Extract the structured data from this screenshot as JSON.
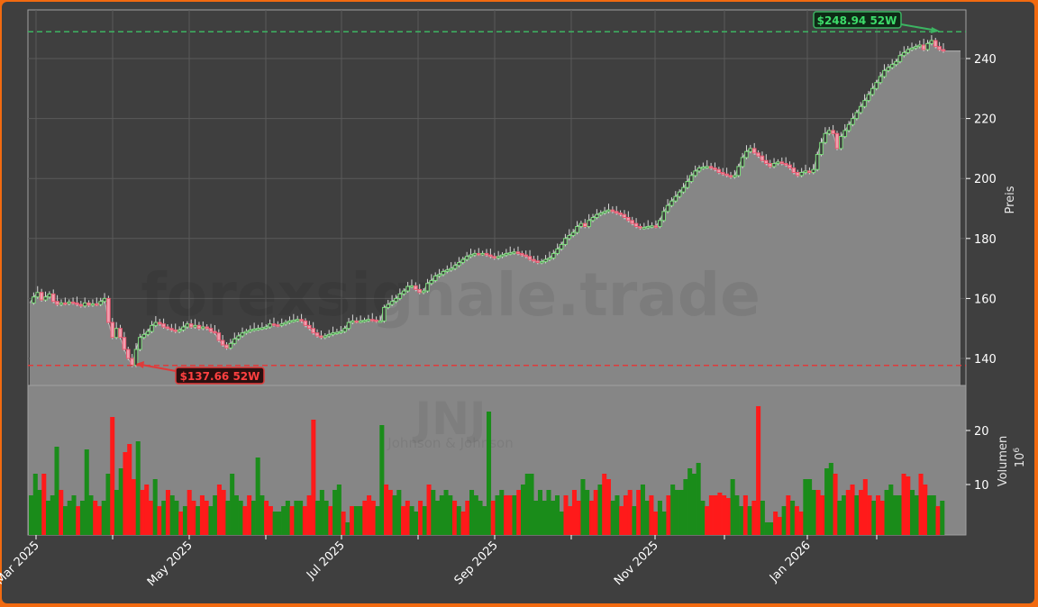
{
  "chart_data": {
    "type": "candlestick",
    "ticker": "JNJ",
    "company": "Johnson & Johnson",
    "watermark": "forexsignale.trade",
    "colors": {
      "background": "#3f3f3f",
      "frame": "#f26a10",
      "area_fill": "#868686",
      "area_line": "#b0b0b0",
      "candle_up": "#7ddc7d",
      "candle_down": "#e8576f",
      "volume_up": "#1a8c1a",
      "volume_down": "#ff1a1a",
      "high_line": "#3cb462",
      "low_line": "#e03a3a",
      "grid": "#5a5a5a"
    },
    "price_axis": {
      "label": "Preis",
      "ticks": [
        140,
        160,
        180,
        200,
        220,
        240
      ],
      "ylim": [
        132.5,
        251
      ]
    },
    "volume_axis": {
      "label": "Volumen",
      "unit": "10^6",
      "unit_base": "10",
      "unit_exp": "6",
      "ticks": [
        10,
        20
      ],
      "ylim": [
        0,
        26
      ]
    },
    "x_axis": {
      "tick_labels": [
        "Mar 2025",
        "May 2025",
        "Jul 2025",
        "Sep 2025",
        "Nov 2025",
        "Jan 2026"
      ]
    },
    "annotations": {
      "high": {
        "label": "$248.94 52W",
        "value": 248.94
      },
      "low": {
        "label": "$137.66 52W",
        "value": 137.66
      }
    },
    "close_series": [
      158.5,
      160.5,
      162,
      159.5,
      160.5,
      161.5,
      159,
      158,
      158.5,
      158.3,
      158.8,
      158.5,
      158,
      157.5,
      158.5,
      157.8,
      158.2,
      158,
      159,
      160,
      152,
      147,
      150,
      147,
      143,
      140,
      137.7,
      143,
      147,
      148,
      149,
      151,
      152,
      151.5,
      150.5,
      150,
      149.5,
      149,
      149.5,
      150.5,
      151.5,
      150.5,
      151,
      150,
      150.5,
      150,
      149,
      148.5,
      146,
      144.5,
      143.5,
      145,
      146.5,
      147.5,
      148.5,
      149,
      149.5,
      149.8,
      150,
      150.2,
      150.5,
      151.5,
      151.2,
      151,
      151.5,
      152,
      152.5,
      152.7,
      153,
      152.5,
      151,
      150,
      148.5,
      147.5,
      147,
      147.5,
      148,
      148.5,
      148.7,
      149,
      150,
      152,
      152.5,
      152.3,
      152.5,
      152.7,
      153,
      152.8,
      152.5,
      152.5,
      157,
      158,
      159,
      160,
      161.5,
      162.5,
      164,
      164.2,
      163,
      162,
      162.5,
      165,
      166,
      167.5,
      168,
      169,
      169.5,
      170,
      171,
      172,
      173,
      174,
      174.5,
      175,
      174.8,
      175,
      174.5,
      174,
      173.5,
      174,
      174.5,
      175,
      175.2,
      175.5,
      175,
      174.5,
      174,
      173,
      172.5,
      172,
      172.3,
      173,
      173.5,
      175,
      176.5,
      178,
      180,
      181,
      182,
      184,
      185,
      184,
      186,
      187,
      188,
      188.5,
      189,
      189.5,
      189,
      188.5,
      188,
      187,
      186,
      185,
      184,
      183.5,
      183.7,
      184,
      184.2,
      184,
      186,
      189,
      191,
      192.5,
      194,
      195.5,
      197,
      199,
      201,
      202.5,
      203.5,
      203.8,
      204,
      203.5,
      203,
      202,
      201.5,
      201,
      200.5,
      201,
      204,
      207,
      209,
      210,
      208.5,
      207.5,
      206,
      205,
      204,
      205,
      205.5,
      205,
      204.5,
      203.5,
      202,
      201,
      202,
      202.5,
      202,
      203,
      208,
      212,
      215,
      216,
      215,
      210,
      214,
      216,
      218,
      220,
      222,
      224,
      226,
      228,
      230,
      232,
      234,
      236,
      237,
      238,
      239,
      241,
      242,
      243,
      243.5,
      244,
      244.5,
      243,
      245,
      246,
      244,
      243,
      242.5
    ],
    "volume_series": [
      {
        "v": 8,
        "up": true
      },
      {
        "v": 12,
        "up": true
      },
      {
        "v": 9,
        "up": true
      },
      {
        "v": 12,
        "up": false
      },
      {
        "v": 7,
        "up": true
      },
      {
        "v": 8,
        "up": true
      },
      {
        "v": 17,
        "up": true
      },
      {
        "v": 9,
        "up": false
      },
      {
        "v": 6,
        "up": true
      },
      {
        "v": 7,
        "up": true
      },
      {
        "v": 8,
        "up": true
      },
      {
        "v": 6,
        "up": false
      },
      {
        "v": 7,
        "up": true
      },
      {
        "v": 16.5,
        "up": true
      },
      {
        "v": 8,
        "up": true
      },
      {
        "v": 7,
        "up": false
      },
      {
        "v": 6,
        "up": false
      },
      {
        "v": 7,
        "up": true
      },
      {
        "v": 12,
        "up": true
      },
      {
        "v": 22.5,
        "up": false
      },
      {
        "v": 9,
        "up": true
      },
      {
        "v": 13,
        "up": true
      },
      {
        "v": 16,
        "up": false
      },
      {
        "v": 17.5,
        "up": false
      },
      {
        "v": 11,
        "up": false
      },
      {
        "v": 18,
        "up": true
      },
      {
        "v": 9,
        "up": false
      },
      {
        "v": 10,
        "up": false
      },
      {
        "v": 7,
        "up": false
      },
      {
        "v": 11,
        "up": true
      },
      {
        "v": 6,
        "up": false
      },
      {
        "v": 7,
        "up": true
      },
      {
        "v": 9,
        "up": false
      },
      {
        "v": 8,
        "up": true
      },
      {
        "v": 7,
        "up": true
      },
      {
        "v": 5,
        "up": false
      },
      {
        "v": 6,
        "up": true
      },
      {
        "v": 9,
        "up": false
      },
      {
        "v": 7,
        "up": false
      },
      {
        "v": 6,
        "up": true
      },
      {
        "v": 8,
        "up": false
      },
      {
        "v": 7,
        "up": false
      },
      {
        "v": 6,
        "up": true
      },
      {
        "v": 8,
        "up": true
      },
      {
        "v": 10,
        "up": false
      },
      {
        "v": 9,
        "up": false
      },
      {
        "v": 7,
        "up": true
      },
      {
        "v": 12,
        "up": true
      },
      {
        "v": 8,
        "up": true
      },
      {
        "v": 7,
        "up": true
      },
      {
        "v": 6,
        "up": false
      },
      {
        "v": 8,
        "up": false
      },
      {
        "v": 7,
        "up": true
      },
      {
        "v": 15,
        "up": true
      },
      {
        "v": 8,
        "up": true
      },
      {
        "v": 7,
        "up": false
      },
      {
        "v": 6,
        "up": false
      },
      {
        "v": 5,
        "up": true
      },
      {
        "v": 5,
        "up": true
      },
      {
        "v": 6,
        "up": true
      },
      {
        "v": 7,
        "up": true
      },
      {
        "v": 6,
        "up": false
      },
      {
        "v": 7,
        "up": true
      },
      {
        "v": 7,
        "up": true
      },
      {
        "v": 6,
        "up": false
      },
      {
        "v": 8,
        "up": false
      },
      {
        "v": 22,
        "up": false
      },
      {
        "v": 7,
        "up": true
      },
      {
        "v": 9,
        "up": true
      },
      {
        "v": 7,
        "up": true
      },
      {
        "v": 6,
        "up": false
      },
      {
        "v": 9,
        "up": true
      },
      {
        "v": 10,
        "up": true
      },
      {
        "v": 5,
        "up": false
      },
      {
        "v": 3,
        "up": true
      },
      {
        "v": 6,
        "up": false
      },
      {
        "v": 6,
        "up": true
      },
      {
        "v": 6,
        "up": true
      },
      {
        "v": 7,
        "up": false
      },
      {
        "v": 8,
        "up": false
      },
      {
        "v": 7,
        "up": false
      },
      {
        "v": 6,
        "up": true
      },
      {
        "v": 21,
        "up": true
      },
      {
        "v": 10,
        "up": false
      },
      {
        "v": 9,
        "up": false
      },
      {
        "v": 8,
        "up": true
      },
      {
        "v": 9,
        "up": true
      },
      {
        "v": 6,
        "up": false
      },
      {
        "v": 7,
        "up": false
      },
      {
        "v": 6,
        "up": true
      },
      {
        "v": 5,
        "up": true
      },
      {
        "v": 7,
        "up": false
      },
      {
        "v": 6,
        "up": true
      },
      {
        "v": 10,
        "up": false
      },
      {
        "v": 9,
        "up": true
      },
      {
        "v": 7,
        "up": true
      },
      {
        "v": 8,
        "up": true
      },
      {
        "v": 9,
        "up": true
      },
      {
        "v": 8,
        "up": true
      },
      {
        "v": 7,
        "up": false
      },
      {
        "v": 6,
        "up": true
      },
      {
        "v": 5,
        "up": false
      },
      {
        "v": 7,
        "up": false
      },
      {
        "v": 9,
        "up": true
      },
      {
        "v": 8,
        "up": true
      },
      {
        "v": 7,
        "up": true
      },
      {
        "v": 6,
        "up": true
      },
      {
        "v": 23.5,
        "up": true
      },
      {
        "v": 7,
        "up": false
      },
      {
        "v": 8,
        "up": true
      },
      {
        "v": 9,
        "up": true
      },
      {
        "v": 8,
        "up": false
      },
      {
        "v": 8,
        "up": false
      },
      {
        "v": 8,
        "up": true
      },
      {
        "v": 9,
        "up": false
      },
      {
        "v": 10,
        "up": true
      },
      {
        "v": 12,
        "up": true
      },
      {
        "v": 12,
        "up": true
      },
      {
        "v": 7,
        "up": true
      },
      {
        "v": 9,
        "up": true
      },
      {
        "v": 7,
        "up": true
      },
      {
        "v": 9,
        "up": true
      },
      {
        "v": 7,
        "up": true
      },
      {
        "v": 8,
        "up": true
      },
      {
        "v": 5,
        "up": true
      },
      {
        "v": 8,
        "up": false
      },
      {
        "v": 6,
        "up": false
      },
      {
        "v": 9,
        "up": false
      },
      {
        "v": 7,
        "up": false
      },
      {
        "v": 11,
        "up": true
      },
      {
        "v": 9,
        "up": true
      },
      {
        "v": 7,
        "up": false
      },
      {
        "v": 9,
        "up": false
      },
      {
        "v": 10,
        "up": true
      },
      {
        "v": 12,
        "up": false
      },
      {
        "v": 11,
        "up": false
      },
      {
        "v": 7,
        "up": true
      },
      {
        "v": 8,
        "up": true
      },
      {
        "v": 6,
        "up": false
      },
      {
        "v": 8,
        "up": false
      },
      {
        "v": 9,
        "up": false
      },
      {
        "v": 6,
        "up": true
      },
      {
        "v": 9,
        "up": false
      },
      {
        "v": 10,
        "up": true
      },
      {
        "v": 7,
        "up": true
      },
      {
        "v": 8,
        "up": false
      },
      {
        "v": 5,
        "up": false
      },
      {
        "v": 7,
        "up": true
      },
      {
        "v": 5,
        "up": true
      },
      {
        "v": 8,
        "up": false
      },
      {
        "v": 10,
        "up": true
      },
      {
        "v": 9,
        "up": true
      },
      {
        "v": 9,
        "up": true
      },
      {
        "v": 11,
        "up": true
      },
      {
        "v": 13,
        "up": true
      },
      {
        "v": 12,
        "up": true
      },
      {
        "v": 14,
        "up": true
      },
      {
        "v": 7,
        "up": true
      },
      {
        "v": 6,
        "up": false
      },
      {
        "v": 8,
        "up": false
      },
      {
        "v": 8,
        "up": false
      },
      {
        "v": 8.5,
        "up": false
      },
      {
        "v": 8,
        "up": false
      },
      {
        "v": 7.5,
        "up": false
      },
      {
        "v": 11,
        "up": true
      },
      {
        "v": 8,
        "up": true
      },
      {
        "v": 6,
        "up": true
      },
      {
        "v": 8,
        "up": false
      },
      {
        "v": 6,
        "up": true
      },
      {
        "v": 7,
        "up": false
      },
      {
        "v": 24.5,
        "up": false
      },
      {
        "v": 7,
        "up": true
      },
      {
        "v": 3,
        "up": true
      },
      {
        "v": 3,
        "up": true
      },
      {
        "v": 5,
        "up": false
      },
      {
        "v": 4,
        "up": false
      },
      {
        "v": 6,
        "up": true
      },
      {
        "v": 8,
        "up": false
      },
      {
        "v": 7,
        "up": true
      },
      {
        "v": 6,
        "up": false
      },
      {
        "v": 5,
        "up": false
      },
      {
        "v": 11,
        "up": true
      },
      {
        "v": 11,
        "up": true
      },
      {
        "v": 9,
        "up": true
      },
      {
        "v": 9,
        "up": false
      },
      {
        "v": 8,
        "up": false
      },
      {
        "v": 13,
        "up": true
      },
      {
        "v": 14,
        "up": true
      },
      {
        "v": 12,
        "up": false
      },
      {
        "v": 7,
        "up": true
      },
      {
        "v": 8,
        "up": true
      },
      {
        "v": 9,
        "up": false
      },
      {
        "v": 10,
        "up": false
      },
      {
        "v": 8,
        "up": true
      },
      {
        "v": 9,
        "up": false
      },
      {
        "v": 11,
        "up": false
      },
      {
        "v": 8,
        "up": false
      },
      {
        "v": 7,
        "up": true
      },
      {
        "v": 8,
        "up": false
      },
      {
        "v": 7,
        "up": false
      },
      {
        "v": 9,
        "up": true
      },
      {
        "v": 10,
        "up": true
      },
      {
        "v": 8,
        "up": true
      },
      {
        "v": 8,
        "up": true
      },
      {
        "v": 12,
        "up": false
      },
      {
        "v": 11.5,
        "up": false
      },
      {
        "v": 9,
        "up": true
      },
      {
        "v": 8,
        "up": true
      },
      {
        "v": 12,
        "up": false
      },
      {
        "v": 10,
        "up": false
      },
      {
        "v": 8,
        "up": true
      },
      {
        "v": 8,
        "up": true
      },
      {
        "v": 6,
        "up": false
      },
      {
        "v": 7,
        "up": true
      }
    ]
  }
}
